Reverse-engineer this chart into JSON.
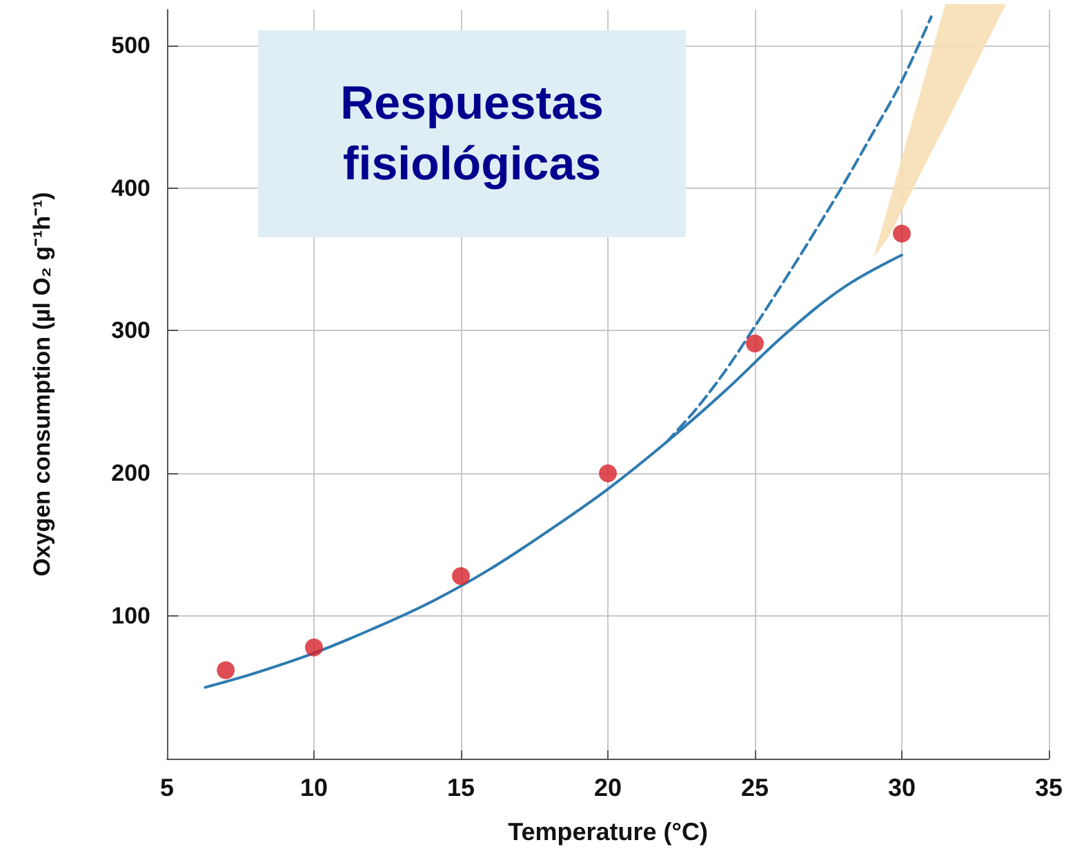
{
  "chart_data": {
    "type": "line",
    "xlabel": "Temperature (°C)",
    "ylabel": "Oxygen consumption (µl O₂ g⁻¹h⁻¹)",
    "annotations": [
      "Respuestas fisiológicas"
    ],
    "xlim": [
      5,
      35
    ],
    "xticks": [
      5,
      10,
      15,
      20,
      25,
      30,
      35
    ],
    "ylim": [
      0,
      525
    ],
    "yticks": [
      100,
      200,
      300,
      400,
      500
    ],
    "grid": true,
    "series": [
      {
        "color": "#2e7bb0",
        "line_style": "solid",
        "marker": "none",
        "x": [
          6.3,
          8,
          10,
          12,
          14,
          16,
          18,
          20,
          22,
          24,
          26,
          28,
          30
        ],
        "values": [
          50,
          60,
          74,
          91,
          110,
          133,
          160,
          189,
          222,
          258,
          297,
          330,
          353
        ]
      },
      {
        "color": "#2e7bb0",
        "line_style": "dashed",
        "marker": "none",
        "x": [
          22,
          23,
          24,
          25,
          26,
          27,
          28,
          29,
          30,
          31
        ],
        "values": [
          222,
          245,
          272,
          303,
          335,
          368,
          402,
          438,
          475,
          520
        ]
      },
      {
        "type": "scatter",
        "color": "#d7202a",
        "marker": "circle",
        "x": [
          7,
          10,
          15,
          20,
          25,
          30
        ],
        "values": [
          62,
          78,
          128,
          200,
          291,
          368
        ]
      }
    ]
  }
}
